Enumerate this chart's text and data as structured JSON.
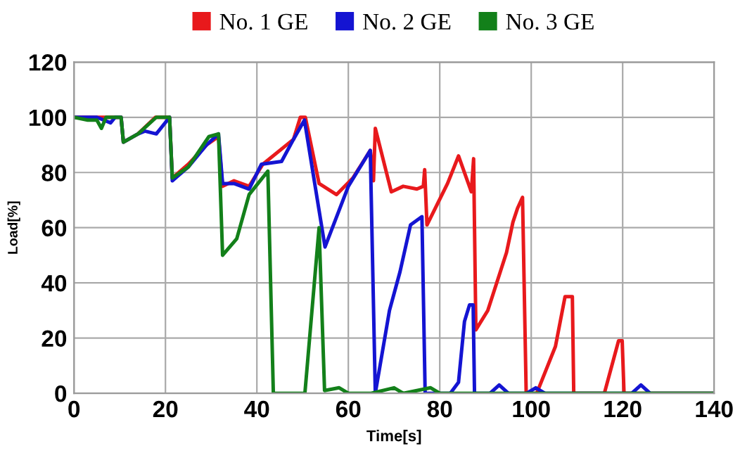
{
  "chart_data": {
    "type": "line",
    "xlabel": "Time[s]",
    "ylabel": "Load[%]",
    "xlim": [
      0,
      140
    ],
    "ylim": [
      0,
      120
    ],
    "xticks": [
      0,
      20,
      40,
      60,
      80,
      100,
      120,
      140
    ],
    "yticks": [
      0,
      20,
      40,
      60,
      80,
      100,
      120
    ],
    "grid": true,
    "legend": "top",
    "marker": "none",
    "line_style": "solid",
    "series": [
      {
        "name": "No. 1 GE",
        "color": "#e8191c",
        "x": [
          0,
          5,
          10.3,
          10.8,
          14,
          17.8,
          20.9,
          21.5,
          25,
          29,
          31.6,
          32.5,
          35,
          38.3,
          41.3,
          48,
          49.5,
          50.6,
          53.6,
          57.4,
          61,
          64.8,
          65.5,
          65.9,
          69.4,
          72,
          75,
          76.4,
          76.7,
          77.2,
          81.7,
          84.1,
          86.9,
          87.4,
          87.9,
          90.5,
          94.6,
          96,
          97,
          98.1,
          98.9,
          101.2,
          105.3,
          107.4,
          109,
          109.3,
          116,
          119.1,
          119.9,
          120.3,
          140
        ],
        "values": [
          100,
          100,
          100,
          91,
          94,
          100,
          100,
          78,
          83,
          90,
          93,
          75,
          77,
          75,
          83,
          92,
          100,
          100,
          76,
          72,
          78,
          88,
          77,
          96,
          73,
          75,
          74,
          75,
          81,
          61,
          76,
          86,
          73,
          85,
          23,
          30,
          51,
          62,
          67,
          71,
          0,
          0,
          17,
          35,
          35,
          0,
          0,
          19,
          19,
          0,
          0
        ]
      },
      {
        "name": "No. 2 GE",
        "color": "#1414d2",
        "x": [
          0,
          5,
          8,
          9,
          10.3,
          10.8,
          14,
          15.5,
          18,
          20.9,
          21.5,
          25,
          29,
          31.6,
          32.5,
          35,
          38.3,
          41,
          45.4,
          48,
          50.4,
          54.9,
          60,
          64.8,
          65.9,
          69,
          71.3,
          73.6,
          76.1,
          76.8,
          82.3,
          84.1,
          85.4,
          86.5,
          87.3,
          87.6,
          91,
          93,
          95,
          99,
          101,
          103,
          122,
          124,
          126,
          140
        ],
        "values": [
          100,
          100,
          98,
          100,
          100,
          91,
          94,
          95,
          94,
          100,
          77,
          82,
          90,
          94,
          76,
          76,
          74,
          83,
          84,
          92,
          99,
          53,
          75,
          88,
          0,
          30,
          44,
          61,
          64,
          0,
          0,
          4,
          26,
          32,
          32,
          0,
          0,
          3,
          0,
          0,
          2,
          0,
          0,
          3,
          0,
          0
        ]
      },
      {
        "name": "No. 3 GE",
        "color": "#13801a",
        "x": [
          0,
          3,
          5,
          6,
          7,
          10.3,
          10.8,
          14,
          18,
          20.9,
          21.5,
          25,
          29.5,
          31.6,
          32.5,
          35.6,
          38.3,
          42.4,
          43.6,
          50.5,
          53.6,
          54.8,
          58,
          60,
          65,
          70,
          72,
          75,
          78,
          80,
          140
        ],
        "values": [
          100,
          99,
          99,
          96,
          100,
          100,
          91,
          94,
          100,
          100,
          78,
          82,
          93,
          94,
          50,
          56,
          72,
          80.5,
          0,
          0,
          60,
          1,
          2,
          0,
          0,
          2,
          0,
          1,
          2,
          0,
          0
        ]
      }
    ]
  }
}
